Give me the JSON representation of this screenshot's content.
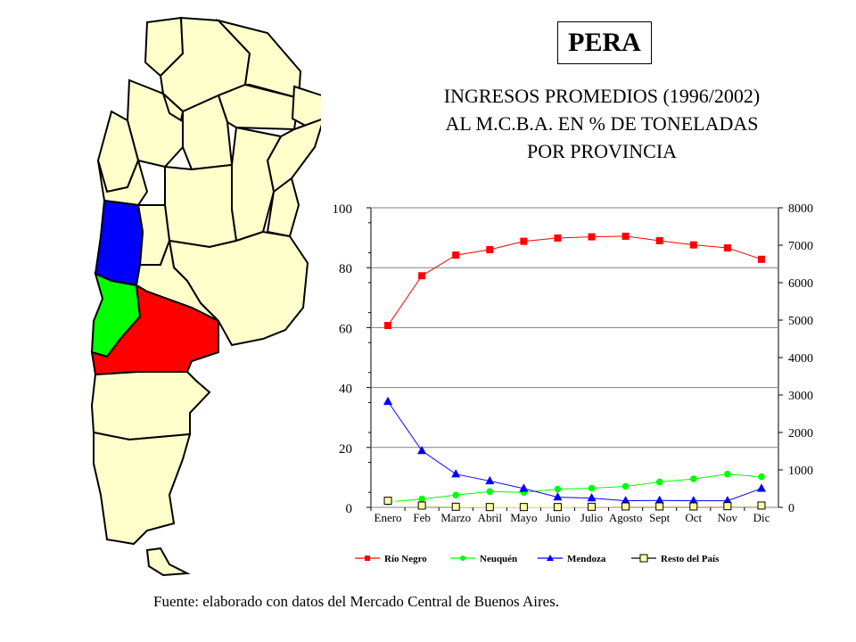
{
  "badge": "PERA",
  "title_lines": [
    "INGRESOS PROMEDIOS (1996/2002)",
    "AL M.C.B.A. EN % DE TONELADAS",
    "POR PROVINCIA"
  ],
  "footnote": "Fuente: elaborado con datos del Mercado Central de Buenos Aires.",
  "colors": {
    "rio_negro": "#ff0000",
    "neuquen": "#00ff00",
    "mendoza": "#0000ff",
    "resto": "#ffffaa",
    "map_base": "#ffffcc",
    "map_rio_negro": "#ff0000",
    "map_neuquen": "#00ff00",
    "map_mendoza": "#0000ff"
  },
  "chart_data": {
    "type": "line",
    "categories": [
      "Enero",
      "Feb",
      "Marzo",
      "Abril",
      "Mayo",
      "Junio",
      "Julio",
      "Agosto",
      "Sept",
      "Oct",
      "Nov",
      "Dic"
    ],
    "ylim": [
      0,
      100
    ],
    "yticks": [
      0,
      20,
      40,
      60,
      80,
      100
    ],
    "y2lim": [
      0,
      8000
    ],
    "y2ticks": [
      0,
      1000,
      2000,
      3000,
      4000,
      5000,
      6000,
      7000,
      8000
    ],
    "grid": true,
    "legend_position": "bottom",
    "series": [
      {
        "name": "Río Negro",
        "color": "#ff0000",
        "marker": "square",
        "values": [
          60.7,
          77.3,
          84.2,
          86.0,
          88.8,
          89.9,
          90.3,
          90.5,
          89.0,
          87.6,
          86.6,
          82.8
        ]
      },
      {
        "name": "Neuquén",
        "color": "#00ff00",
        "marker": "circle",
        "values": [
          1.8,
          2.8,
          4.1,
          5.3,
          5.0,
          6.1,
          6.4,
          7.0,
          8.5,
          9.5,
          11.1,
          10.2
        ]
      },
      {
        "name": "Mendoza",
        "color": "#0000ff",
        "marker": "triangle",
        "values": [
          35.3,
          18.9,
          11.1,
          8.8,
          6.3,
          3.4,
          3.1,
          2.2,
          2.3,
          2.2,
          2.2,
          6.3
        ]
      },
      {
        "name": "Resto del País",
        "color": "#ffffaa",
        "marker": "square-open",
        "values": [
          2.2,
          0.6,
          0.2,
          0.1,
          0.1,
          0.1,
          0.2,
          0.3,
          0.3,
          0.3,
          0.4,
          0.6
        ]
      }
    ]
  }
}
